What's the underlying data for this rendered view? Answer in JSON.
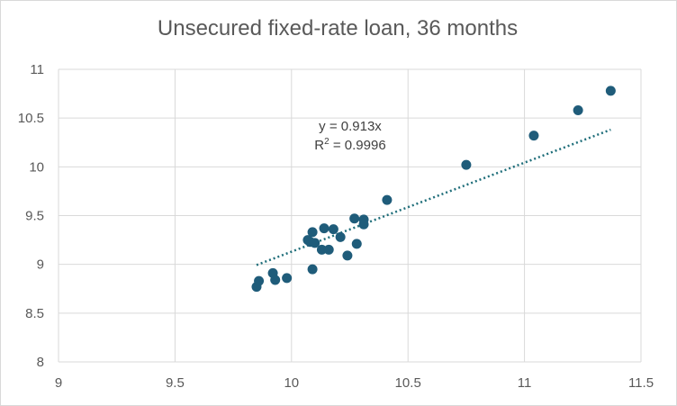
{
  "chart_data": {
    "type": "scatter",
    "title": "Unsecured fixed-rate loan, 36 months",
    "xlabel": "",
    "ylabel": "",
    "xlim": [
      9,
      11.5
    ],
    "ylim": [
      8,
      11
    ],
    "x_ticks": [
      "9",
      "9.5",
      "10",
      "10.5",
      "11",
      "11.5"
    ],
    "y_ticks": [
      "8",
      "8.5",
      "9",
      "9.5",
      "10",
      "10.5",
      "11"
    ],
    "grid": true,
    "legend": "none",
    "marker_color": "#1f5c7a",
    "trendline": {
      "type": "linear-through-origin",
      "slope": 0.913,
      "x_range": [
        9.85,
        11.37
      ],
      "color": "#1f6e7a",
      "style": "dotted",
      "equation_label": "y = 0.913x",
      "r2_prefix": "R",
      "r2_exponent": "2",
      "r2_value": " = 0.9996"
    },
    "points": [
      {
        "x": 9.85,
        "y": 8.77
      },
      {
        "x": 9.86,
        "y": 8.83
      },
      {
        "x": 9.92,
        "y": 8.91
      },
      {
        "x": 9.93,
        "y": 8.84
      },
      {
        "x": 9.98,
        "y": 8.86
      },
      {
        "x": 10.07,
        "y": 9.25
      },
      {
        "x": 10.08,
        "y": 9.23
      },
      {
        "x": 10.09,
        "y": 9.33
      },
      {
        "x": 10.09,
        "y": 8.95
      },
      {
        "x": 10.1,
        "y": 9.22
      },
      {
        "x": 10.13,
        "y": 9.15
      },
      {
        "x": 10.14,
        "y": 9.37
      },
      {
        "x": 10.16,
        "y": 9.15
      },
      {
        "x": 10.18,
        "y": 9.36
      },
      {
        "x": 10.21,
        "y": 9.28
      },
      {
        "x": 10.24,
        "y": 9.09
      },
      {
        "x": 10.27,
        "y": 9.47
      },
      {
        "x": 10.28,
        "y": 9.21
      },
      {
        "x": 10.31,
        "y": 9.46
      },
      {
        "x": 10.31,
        "y": 9.41
      },
      {
        "x": 10.41,
        "y": 9.66
      },
      {
        "x": 10.75,
        "y": 10.02
      },
      {
        "x": 11.04,
        "y": 10.32
      },
      {
        "x": 11.23,
        "y": 10.58
      },
      {
        "x": 11.37,
        "y": 10.78
      }
    ]
  }
}
